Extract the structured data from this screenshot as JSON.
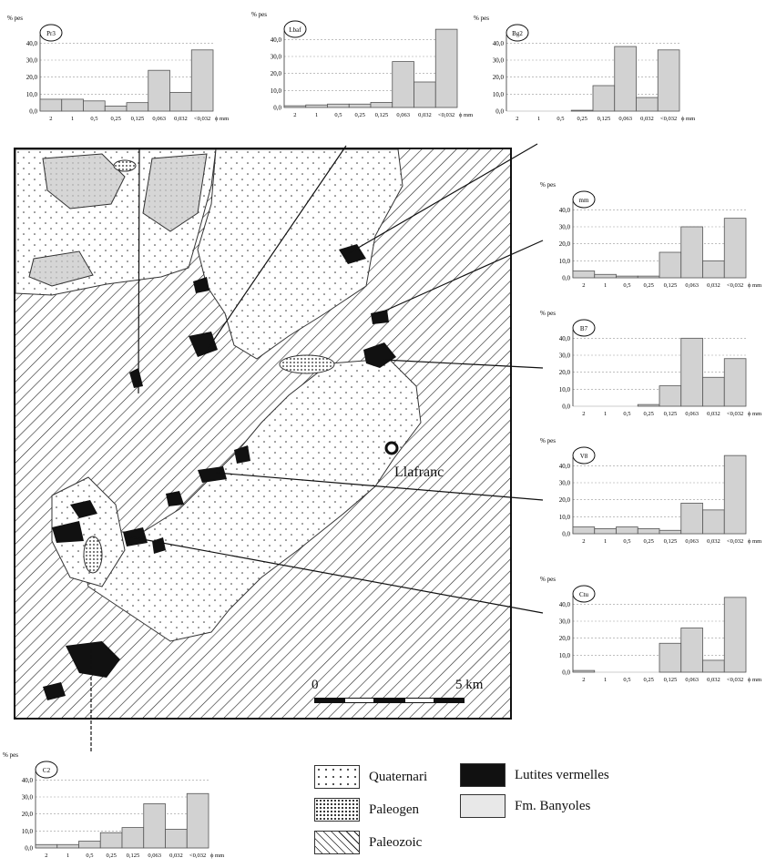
{
  "histogram_axis": {
    "y_unit": "% pes",
    "y_ticks": [
      "0,0",
      "10,0",
      "20,0",
      "30,0",
      "40,0"
    ],
    "y_max": 45,
    "x_categories": [
      "2",
      "1",
      "0,5",
      "0,25",
      "0,125",
      "0,063",
      "0,032",
      "<0,032"
    ],
    "x_unit": "ϕ mm"
  },
  "chart_data": [
    {
      "type": "bar",
      "sample": "Pr3",
      "categories": [
        "2",
        "1",
        "0,5",
        "0,25",
        "0,125",
        "0,063",
        "0,032",
        "<0,032"
      ],
      "values": [
        7,
        7,
        6,
        3,
        5,
        24,
        11,
        36
      ],
      "ylabel": "% pes",
      "ylim": [
        0,
        45
      ]
    },
    {
      "type": "bar",
      "sample": "Lbaf",
      "categories": [
        "2",
        "1",
        "0,5",
        "0,25",
        "0,125",
        "0,063",
        "0,032",
        "<0,032"
      ],
      "values": [
        1,
        1.5,
        2,
        2,
        3,
        27,
        15,
        46
      ],
      "ylabel": "% pes",
      "ylim": [
        0,
        45
      ]
    },
    {
      "type": "bar",
      "sample": "Bg2",
      "categories": [
        "2",
        "1",
        "0,5",
        "0,25",
        "0,125",
        "0,063",
        "0,032",
        "<0,032"
      ],
      "values": [
        0,
        0,
        0,
        0.5,
        15,
        38,
        8,
        36
      ],
      "ylabel": "% pes",
      "ylim": [
        0,
        45
      ]
    },
    {
      "type": "bar",
      "sample": "mm",
      "categories": [
        "2",
        "1",
        "0,5",
        "0,25",
        "0,125",
        "0,063",
        "0,032",
        "<0,032"
      ],
      "values": [
        4,
        2,
        1,
        1,
        15,
        30,
        10,
        35
      ],
      "ylabel": "% pes",
      "ylim": [
        0,
        45
      ]
    },
    {
      "type": "bar",
      "sample": "B7",
      "categories": [
        "2",
        "1",
        "0,5",
        "0,25",
        "0,125",
        "0,063",
        "0,032",
        "<0,032"
      ],
      "values": [
        0,
        0,
        0,
        1,
        12,
        40,
        17,
        28
      ],
      "ylabel": "% pes",
      "ylim": [
        0,
        45
      ]
    },
    {
      "type": "bar",
      "sample": "V8",
      "categories": [
        "2",
        "1",
        "0,5",
        "0,25",
        "0,125",
        "0,063",
        "0,032",
        "<0,032"
      ],
      "values": [
        4,
        3,
        4,
        3,
        2,
        18,
        14,
        46
      ],
      "ylabel": "% pes",
      "ylim": [
        0,
        45
      ]
    },
    {
      "type": "bar",
      "sample": "Ctu",
      "categories": [
        "2",
        "1",
        "0,5",
        "0,25",
        "0,125",
        "0,063",
        "0,032",
        "<0,032"
      ],
      "values": [
        1,
        0,
        0,
        0,
        17,
        26,
        7,
        44
      ],
      "ylabel": "% pes",
      "ylim": [
        0,
        45
      ]
    },
    {
      "type": "bar",
      "sample": "C2",
      "categories": [
        "2",
        "1",
        "0,5",
        "0,25",
        "0,125",
        "0,063",
        "0,032",
        "<0,032"
      ],
      "values": [
        2,
        2,
        4,
        9,
        12,
        26,
        11,
        32
      ],
      "ylabel": "% pes",
      "ylim": [
        0,
        45
      ]
    }
  ],
  "map": {
    "town": "Llafranc",
    "scale_start": "0",
    "scale_end": "5 km"
  },
  "legend": {
    "items": [
      {
        "label": "Quaternari",
        "pattern": "small-dots"
      },
      {
        "label": "Paleogen",
        "pattern": "dense-dots"
      },
      {
        "label": "Paleozoic",
        "pattern": "diagonal-hatch"
      },
      {
        "label": "Lutites vermelles",
        "pattern": "solid-black"
      },
      {
        "label": "Fm. Banyoles",
        "pattern": "light-grey"
      }
    ]
  },
  "colors": {
    "bar_fill": "#d2d2d2",
    "lutites": "#111111",
    "banyoles": "#e8e8e8"
  }
}
